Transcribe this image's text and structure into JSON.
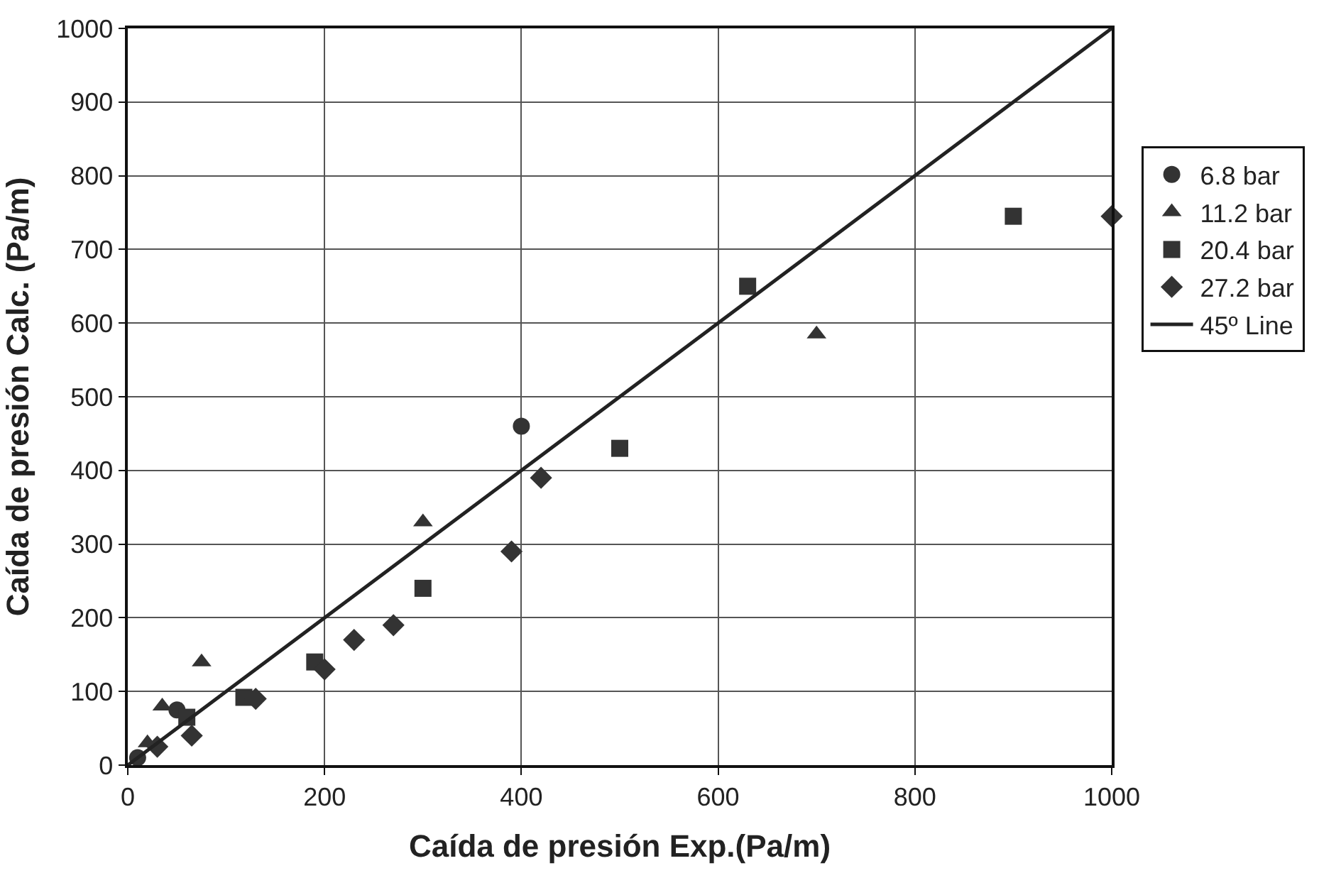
{
  "chart_data": {
    "type": "scatter",
    "xlabel": "Caída de presión Exp.(Pa/m)",
    "ylabel": "Caída de presión Calc. (Pa/m)",
    "xlim": [
      0,
      1000
    ],
    "ylim": [
      0,
      1000
    ],
    "xticks": [
      0,
      200,
      400,
      600,
      800,
      1000
    ],
    "yticks": [
      0,
      100,
      200,
      300,
      400,
      500,
      600,
      700,
      800,
      900,
      1000
    ],
    "grid": true,
    "legend": "right",
    "series": [
      {
        "name": "6.8 bar",
        "color": "#333333",
        "marker": "circle",
        "x": [
          10,
          50,
          400
        ],
        "values": [
          10,
          75,
          460
        ]
      },
      {
        "name": "11.2 bar",
        "color": "#333333",
        "marker": "triangle",
        "x": [
          20,
          35,
          75,
          300,
          700
        ],
        "values": [
          30,
          80,
          140,
          330,
          585
        ]
      },
      {
        "name": "20.4 bar",
        "color": "#333333",
        "marker": "square",
        "x": [
          60,
          118,
          190,
          300,
          500,
          630,
          900
        ],
        "values": [
          65,
          92,
          140,
          240,
          430,
          650,
          745
        ]
      },
      {
        "name": "27.2 bar",
        "color": "#333333",
        "marker": "diamond",
        "x": [
          30,
          65,
          130,
          200,
          230,
          270,
          390,
          420,
          1000
        ],
        "values": [
          25,
          40,
          90,
          130,
          170,
          190,
          290,
          390,
          745
        ]
      },
      {
        "name": "45º Line",
        "type": "line",
        "color": "#222222",
        "marker": "none",
        "x": [
          0,
          1000
        ],
        "values": [
          0,
          1000
        ]
      }
    ]
  }
}
